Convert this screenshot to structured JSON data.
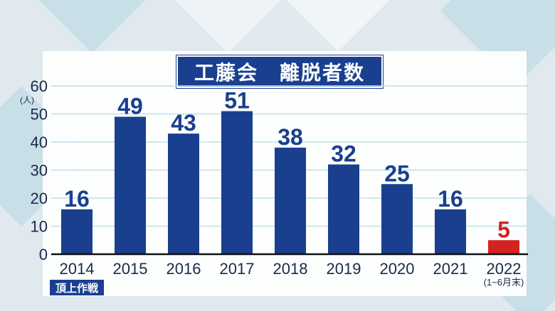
{
  "title": "工藤会　離脱者数",
  "colors": {
    "bar": "#1a3f8f",
    "highlight_bar": "#d42222",
    "label": "#1a3f8f",
    "highlight_label": "#d42222",
    "axis_text": "#1a2a4a",
    "grid": "#bfe0ea"
  },
  "chart_data": {
    "type": "bar",
    "title": "工藤会　離脱者数",
    "unit_label": "(人)",
    "ylim": [
      0,
      60
    ],
    "yticks": [
      "0",
      "10",
      "20",
      "30",
      "40",
      "50",
      "60"
    ],
    "categories": [
      "2014",
      "2015",
      "2016",
      "2017",
      "2018",
      "2019",
      "2020",
      "2021",
      "2022"
    ],
    "category_notes": [
      "頂上作戦",
      "",
      "",
      "",
      "",
      "",
      "",
      "",
      "(1~6月末)"
    ],
    "values": [
      16,
      49,
      43,
      51,
      38,
      32,
      25,
      16,
      5
    ],
    "highlight_index": 8,
    "grid": true
  }
}
